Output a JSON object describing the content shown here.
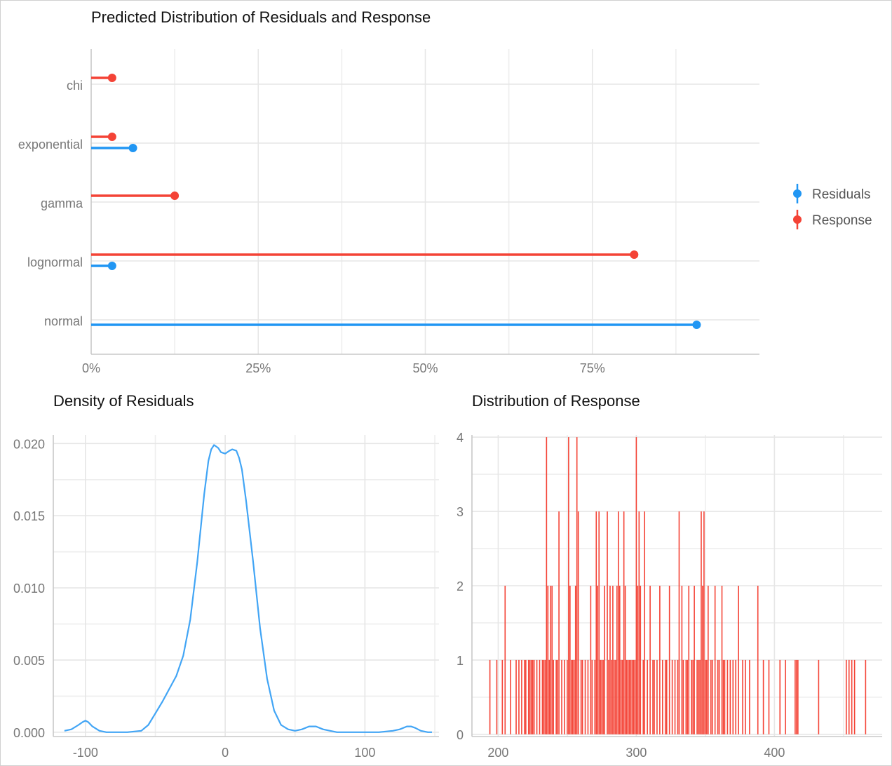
{
  "colors": {
    "residuals": "#2196F3",
    "response": "#F44336",
    "density_line": "#42A5F5",
    "histogram": "#F44336"
  },
  "chart_data": [
    {
      "type": "lollipop",
      "title": "Predicted Distribution of Residuals and Response",
      "categories": [
        "chi",
        "exponential",
        "gamma",
        "lognormal",
        "normal"
      ],
      "x_ticks": [
        "0%",
        "25%",
        "50%",
        "75%"
      ],
      "x_tick_values": [
        0,
        25,
        50,
        75
      ],
      "xlim": [
        0,
        100
      ],
      "series": [
        {
          "name": "Residuals",
          "values": [
            null,
            6.25,
            null,
            3.13,
            90.6
          ]
        },
        {
          "name": "Response",
          "values": [
            3.13,
            3.13,
            12.5,
            81.25,
            null
          ]
        }
      ],
      "legend": [
        "Residuals",
        "Response"
      ],
      "legend_position": "right"
    },
    {
      "type": "line",
      "title": "Density of Residuals",
      "x_ticks": [
        "-100",
        "0",
        "100"
      ],
      "x_tick_values": [
        -100,
        0,
        100
      ],
      "y_ticks": [
        "0.000",
        "0.005",
        "0.010",
        "0.015",
        "0.020"
      ],
      "y_tick_values": [
        0,
        0.005,
        0.01,
        0.015,
        0.02
      ],
      "xlim": [
        -123,
        153
      ],
      "ylim": [
        -0.0003,
        0.0206
      ],
      "x": [
        -115,
        -110,
        -105,
        -102,
        -100,
        -98,
        -95,
        -90,
        -85,
        -80,
        -70,
        -60,
        -55,
        -50,
        -45,
        -40,
        -35,
        -30,
        -25,
        -20,
        -15,
        -12,
        -10,
        -8,
        -5,
        -3,
        0,
        3,
        5,
        8,
        10,
        12,
        15,
        20,
        25,
        30,
        35,
        40,
        45,
        50,
        55,
        60,
        65,
        70,
        75,
        80,
        90,
        100,
        110,
        120,
        125,
        130,
        133,
        136,
        140,
        145,
        148
      ],
      "y": [
        0.0001,
        0.0002,
        0.0005,
        0.0007,
        0.0008,
        0.0007,
        0.0004,
        0.0001,
        0.0,
        0.0,
        0.0,
        0.0001,
        0.0005,
        0.0013,
        0.0021,
        0.003,
        0.0039,
        0.0053,
        0.0078,
        0.0118,
        0.0165,
        0.0188,
        0.0196,
        0.0199,
        0.0197,
        0.0194,
        0.0193,
        0.0195,
        0.0196,
        0.0195,
        0.019,
        0.0182,
        0.016,
        0.0118,
        0.0072,
        0.0037,
        0.0015,
        0.0005,
        0.0002,
        0.0001,
        0.0002,
        0.0004,
        0.0004,
        0.0002,
        0.0001,
        0.0,
        0.0,
        0.0,
        0.0,
        0.0001,
        0.0002,
        0.0004,
        0.0004,
        0.0003,
        0.0001,
        0.0,
        0.0
      ]
    },
    {
      "type": "bar",
      "title": "Distribution of Response",
      "x_ticks": [
        "200",
        "300",
        "400"
      ],
      "x_tick_values": [
        200,
        300,
        400
      ],
      "y_ticks": [
        "0",
        "1",
        "2",
        "3",
        "4"
      ],
      "y_tick_values": [
        0,
        1,
        2,
        3,
        4
      ],
      "xlim": [
        181,
        478
      ],
      "ylim": [
        -0.03,
        4.03
      ],
      "x": [
        194,
        199,
        203,
        205,
        209,
        213,
        215,
        217,
        219,
        220,
        222,
        223,
        224,
        225,
        226,
        228,
        230,
        232,
        233,
        234,
        235,
        236,
        237,
        238,
        239,
        240,
        242,
        243,
        244,
        246,
        248,
        250,
        251,
        252,
        253,
        254,
        255,
        256,
        257,
        258,
        260,
        261,
        263,
        265,
        267,
        268,
        270,
        271,
        272,
        273,
        274,
        275,
        276,
        277,
        279,
        280,
        281,
        282,
        283,
        284,
        285,
        286,
        287,
        288,
        289,
        290,
        291,
        292,
        293,
        294,
        295,
        296,
        297,
        298,
        299,
        300,
        301,
        302,
        303,
        305,
        306,
        308,
        310,
        312,
        313,
        315,
        317,
        319,
        321,
        322,
        324,
        326,
        328,
        330,
        331,
        333,
        334,
        336,
        337,
        338,
        340,
        341,
        342,
        344,
        345,
        346,
        347,
        348,
        349,
        350,
        351,
        352,
        354,
        355,
        357,
        359,
        360,
        362,
        363,
        364,
        366,
        368,
        370,
        372,
        374,
        377,
        379,
        382,
        388,
        392,
        396,
        404,
        408,
        415,
        416,
        417,
        432,
        452,
        454,
        456,
        458,
        466
      ],
      "values": [
        1,
        1,
        1,
        2,
        1,
        1,
        1,
        1,
        1,
        1,
        1,
        1,
        1,
        1,
        1,
        1,
        1,
        1,
        1,
        1,
        4,
        2,
        1,
        2,
        2,
        1,
        1,
        1,
        3,
        1,
        1,
        1,
        4,
        2,
        1,
        1,
        1,
        2,
        4,
        3,
        1,
        1,
        1,
        1,
        2,
        1,
        1,
        3,
        2,
        3,
        1,
        1,
        1,
        2,
        3,
        1,
        2,
        1,
        2,
        1,
        1,
        2,
        3,
        2,
        1,
        1,
        3,
        2,
        1,
        1,
        1,
        1,
        1,
        1,
        1,
        4,
        2,
        3,
        2,
        1,
        3,
        1,
        2,
        1,
        1,
        1,
        2,
        1,
        1,
        1,
        2,
        1,
        1,
        1,
        3,
        2,
        1,
        1,
        1,
        2,
        1,
        1,
        2,
        1,
        1,
        1,
        3,
        2,
        3,
        1,
        1,
        2,
        1,
        1,
        2,
        1,
        1,
        2,
        1,
        1,
        1,
        1,
        1,
        1,
        2,
        1,
        1,
        1,
        2,
        1,
        1,
        1,
        1,
        1,
        1,
        1,
        1,
        1,
        1,
        1,
        1,
        1
      ]
    }
  ]
}
